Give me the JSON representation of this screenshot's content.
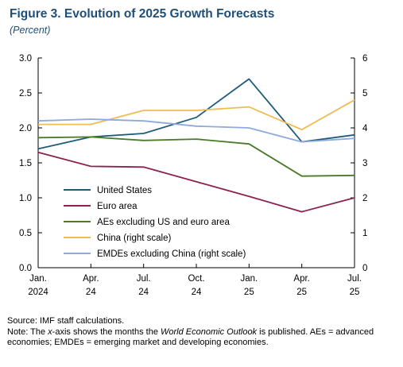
{
  "figure": {
    "title": "Figure 3.  Evolution of 2025 Growth Forecasts",
    "subtitle": "(Percent)"
  },
  "chart_data": {
    "type": "line",
    "title": "Figure 3.  Evolution of 2025 Growth Forecasts",
    "subtitle": "(Percent)",
    "x": [
      [
        "Jan.",
        "2024"
      ],
      [
        "Apr.",
        "24"
      ],
      [
        "Jul.",
        "24"
      ],
      [
        "Oct.",
        "24"
      ],
      [
        "Jan.",
        "25"
      ],
      [
        "Apr.",
        "25"
      ],
      [
        "Jul.",
        "25"
      ]
    ],
    "y_left": {
      "ylim": [
        0,
        3
      ],
      "ticks": [
        "0.0",
        "0.5",
        "1.0",
        "1.5",
        "2.0",
        "2.5",
        "3.0"
      ]
    },
    "y_right": {
      "ylim": [
        0,
        6
      ],
      "ticks": [
        "0",
        "1",
        "2",
        "3",
        "4",
        "5",
        "6"
      ]
    },
    "grid": false,
    "legend_position": "bottom-left",
    "series": [
      {
        "name": "United States",
        "axis": "left",
        "color": "#1f5c7a",
        "values": [
          1.7,
          1.87,
          1.92,
          2.15,
          2.7,
          1.8,
          1.9
        ]
      },
      {
        "name": "Euro area",
        "axis": "left",
        "color": "#8b2252",
        "values": [
          1.65,
          1.45,
          1.44,
          1.23,
          1.02,
          0.8,
          1.0
        ]
      },
      {
        "name": "AEs excluding US and euro area",
        "axis": "left",
        "color": "#4a7a2a",
        "values": [
          1.86,
          1.87,
          1.82,
          1.84,
          1.77,
          1.31,
          1.32
        ]
      },
      {
        "name": "China (right scale)",
        "axis": "right",
        "color": "#f0bb55",
        "values": [
          4.1,
          4.1,
          4.5,
          4.5,
          4.6,
          3.95,
          4.8
        ]
      },
      {
        "name": "EMDEs excluding China (right scale)",
        "axis": "right",
        "color": "#8ea9db",
        "values": [
          4.2,
          4.25,
          4.2,
          4.05,
          4.0,
          3.6,
          3.7
        ]
      }
    ]
  },
  "footer": {
    "source": "Source: IMF staff calculations.",
    "note_prefix": "Note: The ",
    "note_x": "x",
    "note_mid": "-axis shows the months the ",
    "note_weo": "World Economic Outlook",
    "note_suffix": " is published. AEs = advanced economies; EMDEs = emerging market and developing economies."
  }
}
